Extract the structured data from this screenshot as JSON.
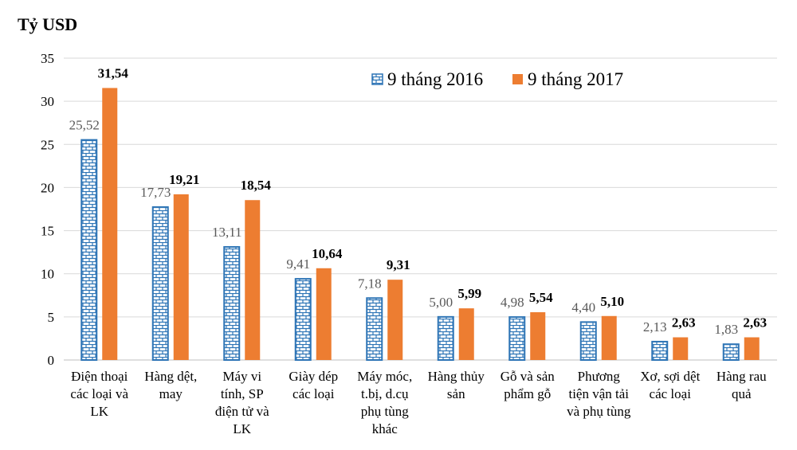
{
  "chart_data": {
    "type": "bar",
    "unit_label": "Tỷ USD",
    "categories": [
      [
        "Điện thoại",
        "các loại và",
        "LK"
      ],
      [
        "Hàng dệt,",
        "may"
      ],
      [
        "Máy vi",
        "tính, SP",
        "điện tử và",
        "LK"
      ],
      [
        "Giày dép",
        "các loại"
      ],
      [
        "Máy móc,",
        "t.bị, d.cụ",
        "phụ tùng",
        "khác"
      ],
      [
        "Hàng thủy",
        "sản"
      ],
      [
        "Gỗ và sản",
        "phẩm gỗ"
      ],
      [
        "Phương",
        "tiện vận tải",
        "và phụ tùng"
      ],
      [
        "Xơ, sợi dệt",
        "các loại"
      ],
      [
        "Hàng rau",
        "quả"
      ]
    ],
    "series": [
      {
        "name": "9 tháng 2016",
        "values": [
          25.52,
          17.73,
          13.11,
          9.41,
          7.18,
          5.0,
          4.98,
          4.4,
          2.13,
          1.83
        ],
        "labels": [
          "25,52",
          "17,73",
          "13,11",
          "9,41",
          "7,18",
          "5,00",
          "4,98",
          "4,40",
          "2,13",
          "1,83"
        ],
        "color": "#2E75B6",
        "pattern": "brick"
      },
      {
        "name": "9 tháng 2017",
        "values": [
          31.54,
          19.21,
          18.54,
          10.64,
          9.31,
          5.99,
          5.54,
          5.1,
          2.63,
          2.63
        ],
        "labels": [
          "31,54",
          "19,21",
          "18,54",
          "10,64",
          "9,31",
          "5,99",
          "5,54",
          "5,10",
          "2,63",
          "2,63"
        ],
        "color": "#ED7D31",
        "pattern": "solid"
      }
    ],
    "ylim": [
      0,
      35
    ],
    "yticks": [
      0,
      5,
      10,
      15,
      20,
      25,
      30,
      35
    ],
    "grid": true,
    "legend": "top-right"
  }
}
